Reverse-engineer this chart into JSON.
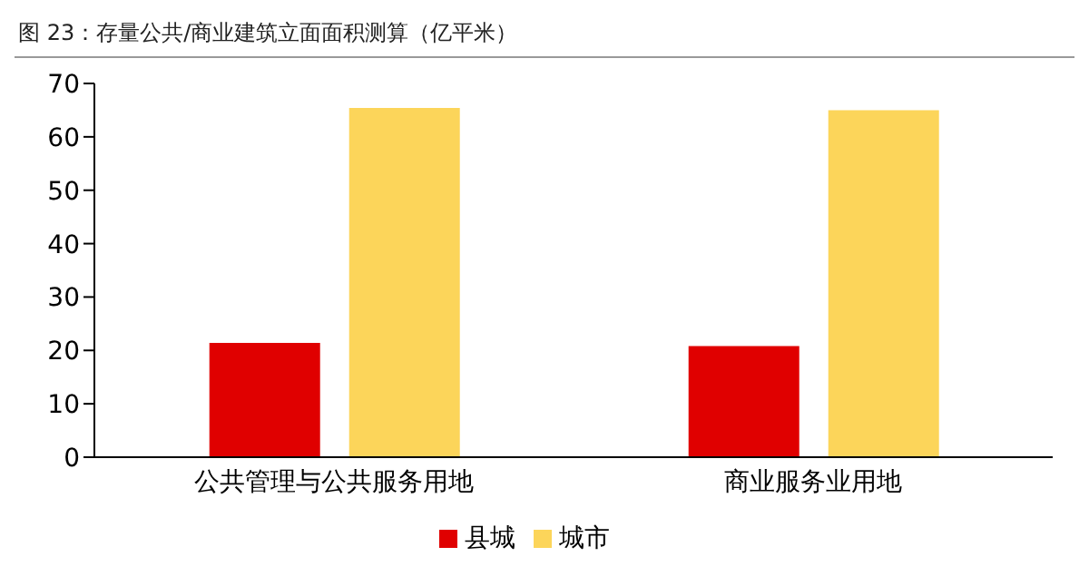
{
  "chart_data": {
    "type": "bar",
    "title": "图 23：存量公共/商业建筑立面面积测算（亿平米）",
    "categories": [
      "公共管理与公共服务用地",
      "商业服务业用地"
    ],
    "series": [
      {
        "name": "县城",
        "color": "#e00000",
        "values": [
          21.4,
          20.8
        ]
      },
      {
        "name": "城市",
        "color": "#fcd55a",
        "values": [
          65.4,
          65.0
        ]
      }
    ],
    "ylim": [
      0,
      70
    ],
    "yticks": [
      0,
      10,
      20,
      30,
      40,
      50,
      60,
      70
    ],
    "grid": false,
    "legend": "bottom"
  }
}
